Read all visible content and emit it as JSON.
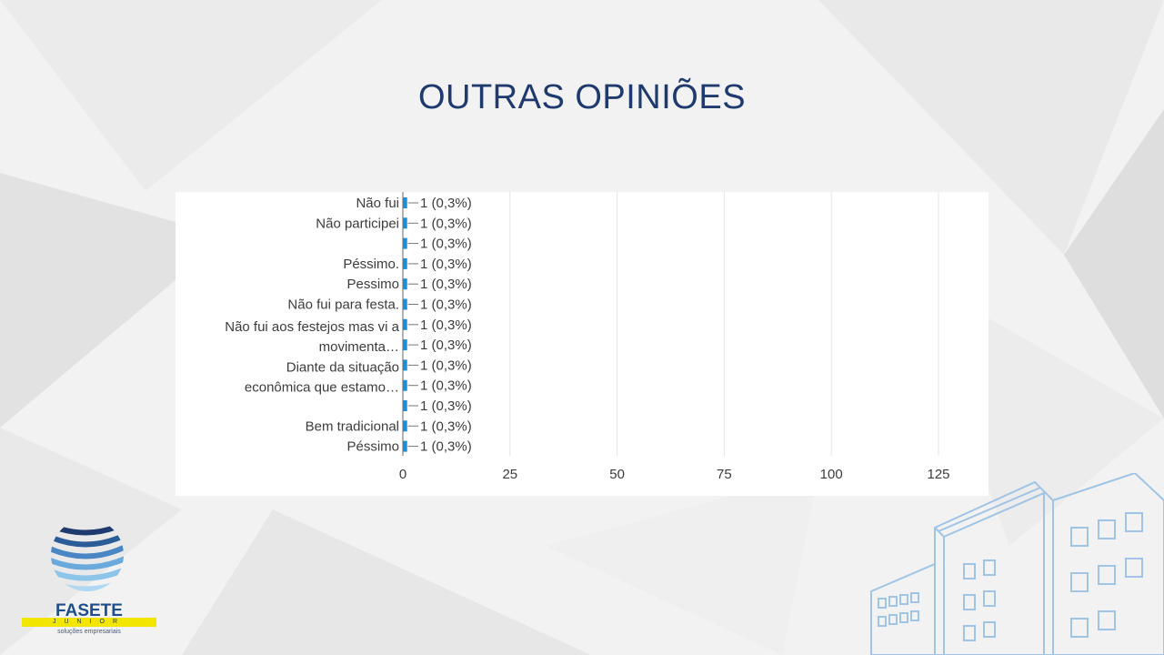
{
  "slide": {
    "title": "OUTRAS OPINIÕES"
  },
  "logo": {
    "name": "FASETE",
    "tagline": "JUNIOR",
    "subtitle": "soluções empresariais"
  },
  "colors": {
    "title": "#1f3a6e",
    "bar": "#1a8fd6",
    "grid": "#e3e3e3",
    "text": "#3c3c3c"
  },
  "chart_data": {
    "type": "bar",
    "orientation": "horizontal",
    "categories": [
      "Não fui",
      "Não participei",
      "",
      "Péssimo.",
      "Pessimo",
      "Não fui para festa.",
      "",
      "",
      "",
      "",
      "",
      "Bem tradicional",
      "Péssimo"
    ],
    "extra_labels": [
      {
        "text": "Não fui aos festejos mas vi a",
        "near_row": 6.5
      },
      {
        "text": "movimenta…",
        "near_row": 7.5
      },
      {
        "text": "Diante da situação",
        "near_row": 8.5
      },
      {
        "text": "econômica que estamo…",
        "near_row": 9.5
      }
    ],
    "values": [
      1,
      1,
      1,
      1,
      1,
      1,
      1,
      1,
      1,
      1,
      1,
      1,
      1
    ],
    "data_labels": [
      "1 (0,3%)",
      "1 (0,3%)",
      "1 (0,3%)",
      "1 (0,3%)",
      "1 (0,3%)",
      "1 (0,3%)",
      "1 (0,3%)",
      "1 (0,3%)",
      "1 (0,3%)",
      "1 (0,3%)",
      "1 (0,3%)",
      "1 (0,3%)",
      "1 (0,3%)"
    ],
    "x_ticks": [
      0,
      25,
      50,
      75,
      100,
      125
    ],
    "xlim": [
      0,
      125
    ],
    "grid": true,
    "title": "",
    "xlabel": "",
    "ylabel": ""
  }
}
